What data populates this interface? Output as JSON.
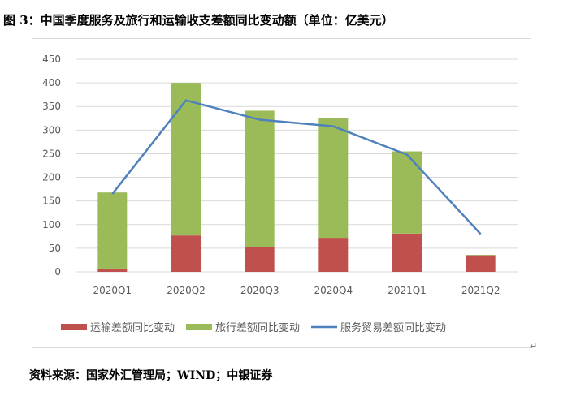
{
  "figure_title": "图 3：中国季度服务及旅行和运输收支差额同比变动额（单位：亿美元）",
  "source_note": "资料来源：国家外汇管理局；WIND；中银证券",
  "colors": {
    "transport": "#c0504d",
    "travel": "#9bbb59",
    "service": "#4f81bd",
    "grid": "#d9d9d9",
    "axis_text": "#595959"
  },
  "chart_data": {
    "type": "bar",
    "stacked": true,
    "title": "",
    "xlabel": "",
    "ylabel": "",
    "ylim": [
      0,
      450
    ],
    "yticks": [
      0,
      50,
      100,
      150,
      200,
      250,
      300,
      350,
      400,
      450
    ],
    "categories": [
      "2020Q1",
      "2020Q2",
      "2020Q3",
      "2020Q4",
      "2021Q1",
      "2021Q2"
    ],
    "series": [
      {
        "name": "运输差额同比变动",
        "kind": "bar",
        "color_key": "transport",
        "values": [
          7,
          77,
          53,
          72,
          81,
          35
        ]
      },
      {
        "name": "旅行差额同比变动",
        "kind": "bar",
        "color_key": "travel",
        "values": [
          161,
          323,
          288,
          254,
          174,
          1
        ]
      },
      {
        "name": "服务贸易差额同比变动",
        "kind": "line",
        "color_key": "service",
        "values": [
          165,
          363,
          322,
          308,
          248,
          80
        ]
      }
    ],
    "legend_position": "bottom",
    "grid": true
  }
}
